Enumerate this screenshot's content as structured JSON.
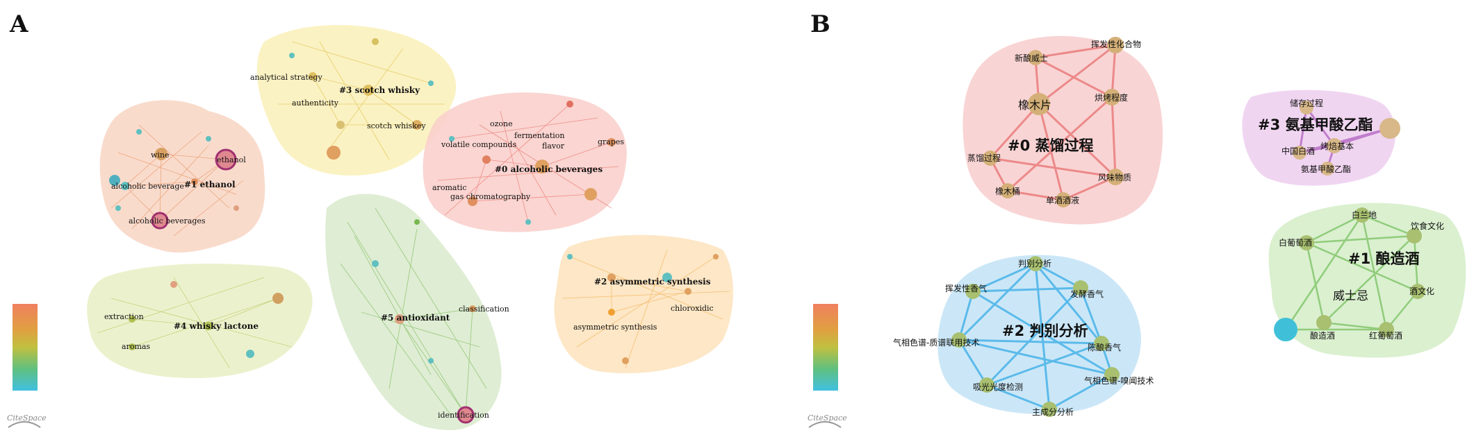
{
  "panel_a": {
    "letter": "A",
    "clusters": [
      {
        "label": "#0 alcoholic beverages",
        "color": "#e8524a",
        "hull": "#f9d0cc",
        "keywords": [
          "ozone",
          "fermentation",
          "volatile compounds",
          "flavor",
          "grapes",
          "aromatic",
          "gas chromatography"
        ]
      },
      {
        "label": "#1 ethanol",
        "color": "#e07a3a",
        "hull": "#f8d5c3",
        "keywords": [
          "wine",
          "ethanol",
          "alcoholic beverage",
          "alcoholic beverages"
        ]
      },
      {
        "label": "#2 asymmetric synthesis",
        "color": "#f0a030",
        "hull": "#fde4c0",
        "keywords": [
          "chloroxidic",
          "asymmetric synthesis"
        ]
      },
      {
        "label": "#3 scotch whisky",
        "color": "#e0c030",
        "hull": "#fbf1bd",
        "keywords": [
          "analytical strategy",
          "authenticity",
          "scotch whiskey"
        ]
      },
      {
        "label": "#4 whisky lactone",
        "color": "#b0c040",
        "hull": "#eaf0c8",
        "keywords": [
          "extraction",
          "aromas"
        ]
      },
      {
        "label": "#5 antioxidant",
        "color": "#78b850",
        "hull": "#dcebcf",
        "keywords": [
          "classification",
          "identification"
        ]
      }
    ],
    "logo": "CiteSpace"
  },
  "panel_b": {
    "letter": "B",
    "clusters": [
      {
        "label": "#0 蒸馏过程",
        "color": "#e87070",
        "hull": "#f9d2d2",
        "keywords": [
          "橡木片",
          "新酿威士",
          "挥发性化合物",
          "烘烤程度",
          "蒸馏过程",
          "风味物质",
          "橡木桶",
          "单酒酒液"
        ]
      },
      {
        "label": "#3 氨基甲酸乙酯",
        "color": "#c070c8",
        "hull": "#efd3f0",
        "keywords": [
          "储存过程",
          "中国白酒",
          "烤焙基本",
          "氨基甲酸乙酯"
        ]
      },
      {
        "label": "#1 酿造酒",
        "color": "#78c060",
        "hull": "#d8efcc",
        "keywords": [
          "白兰地",
          "白葡萄酒",
          "饮食文化",
          "威士忌",
          "酒文化",
          "酿造酒",
          "红葡萄酒"
        ]
      },
      {
        "label": "#2 判别分析",
        "color": "#40b0e8",
        "hull": "#c8e6f7",
        "keywords": [
          "判别分析",
          "挥发性香气",
          "发酵香气",
          "气相色谱-质谱联用技术",
          "陈酿香气",
          "气相色谱-嗅闻技术",
          "吸光光度检测",
          "主成分分析"
        ]
      }
    ],
    "logo": "CiteSpace"
  },
  "colors": {
    "legend_gradient": [
      "#f08060",
      "#e0a040",
      "#c0c040",
      "#60c080",
      "#40c0e0"
    ]
  }
}
